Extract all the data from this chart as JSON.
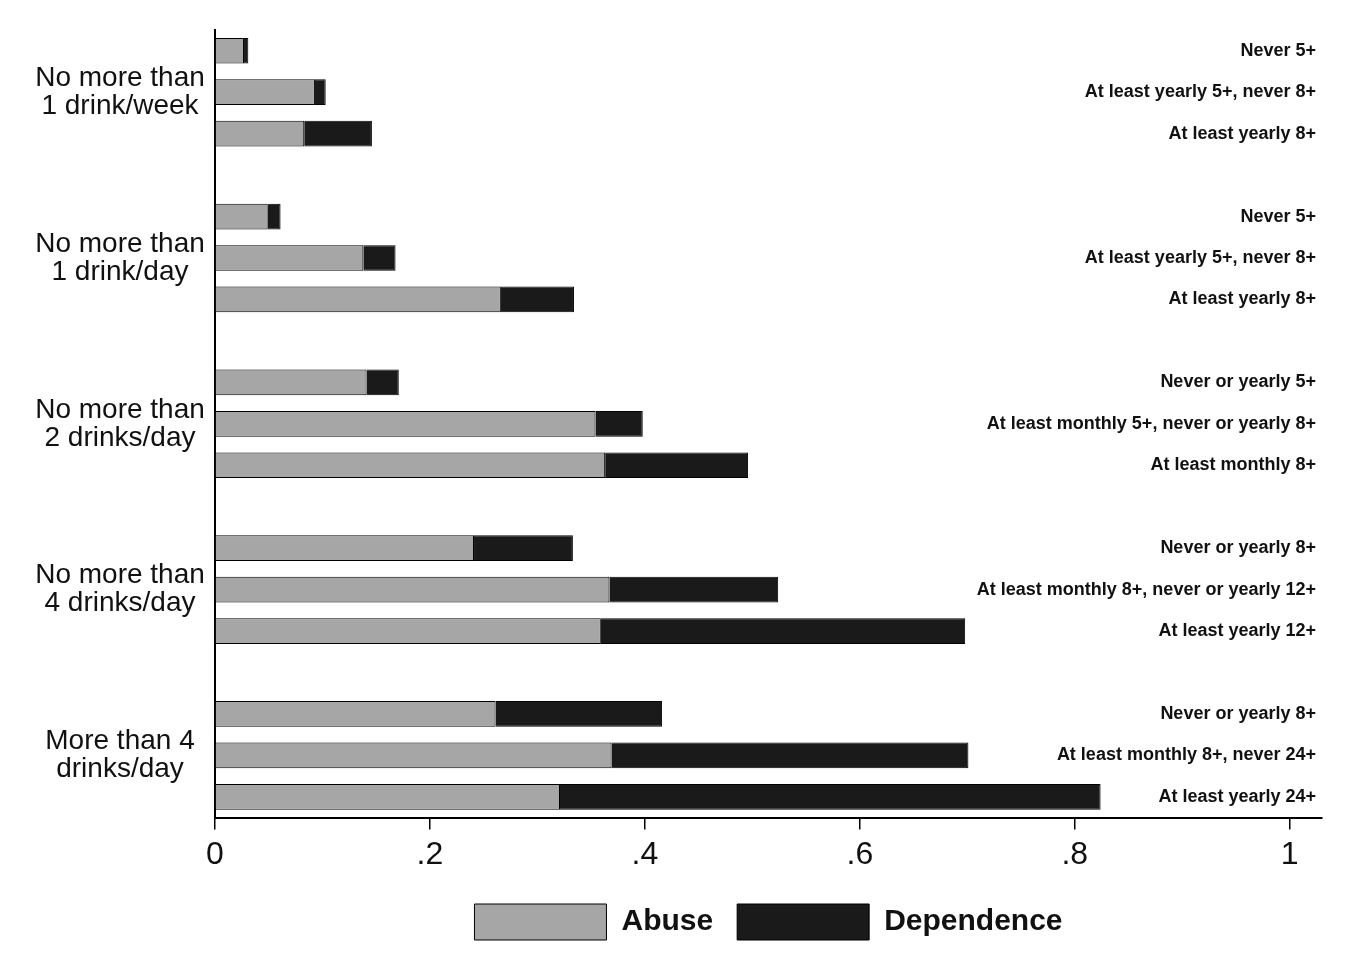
{
  "chart_data": {
    "type": "bar",
    "orientation": "horizontal",
    "stacked": true,
    "categories": [
      "Never 5+",
      "At least yearly 5+, never 8+",
      "At least yearly 8+",
      null,
      "Never 5+",
      "At least yearly 5+, never 8+",
      "At least yearly 8+",
      null,
      "Never or yearly 5+",
      "At least monthly 5+, never or yearly 8+",
      "At least monthly 8+",
      null,
      "Never or yearly 8+",
      "At least monthly 8+, never or yearly 12+",
      "At least yearly 12+",
      null,
      "Never or yearly 8+",
      "At least monthly 8+, never 24+",
      "At least yearly 24+"
    ],
    "series": [
      {
        "name": "Abuse",
        "color": "#a6a6a6",
        "values": [
          0.027,
          0.093,
          0.083,
          null,
          0.049,
          0.138,
          0.266,
          null,
          0.141,
          0.354,
          0.363,
          null,
          0.241,
          0.367,
          0.359,
          null,
          0.261,
          0.369,
          0.321
        ]
      },
      {
        "name": "Dependence",
        "color": "#1a1a1a",
        "values": [
          0.004,
          0.01,
          0.063,
          null,
          0.012,
          0.03,
          0.068,
          null,
          0.03,
          0.044,
          0.133,
          null,
          0.092,
          0.157,
          0.339,
          null,
          0.155,
          0.332,
          0.503
        ]
      }
    ],
    "annotations": [
      "No more than 1 drink/week",
      "No more than 1 drink/day",
      "No more than 2 drinks/day",
      "No more than 4 drinks/day",
      "More than 4 drinks/day"
    ],
    "xlim": [
      0,
      1.03
    ],
    "xticks": [
      0,
      {
        "value": 0.2,
        "label": ".2"
      },
      {
        "value": 0.4,
        "label": ".4"
      },
      {
        "value": 0.6,
        "label": ".6"
      },
      {
        "value": 0.8,
        "label": ".8"
      },
      1
    ],
    "grid": false,
    "legend": "bottom"
  }
}
